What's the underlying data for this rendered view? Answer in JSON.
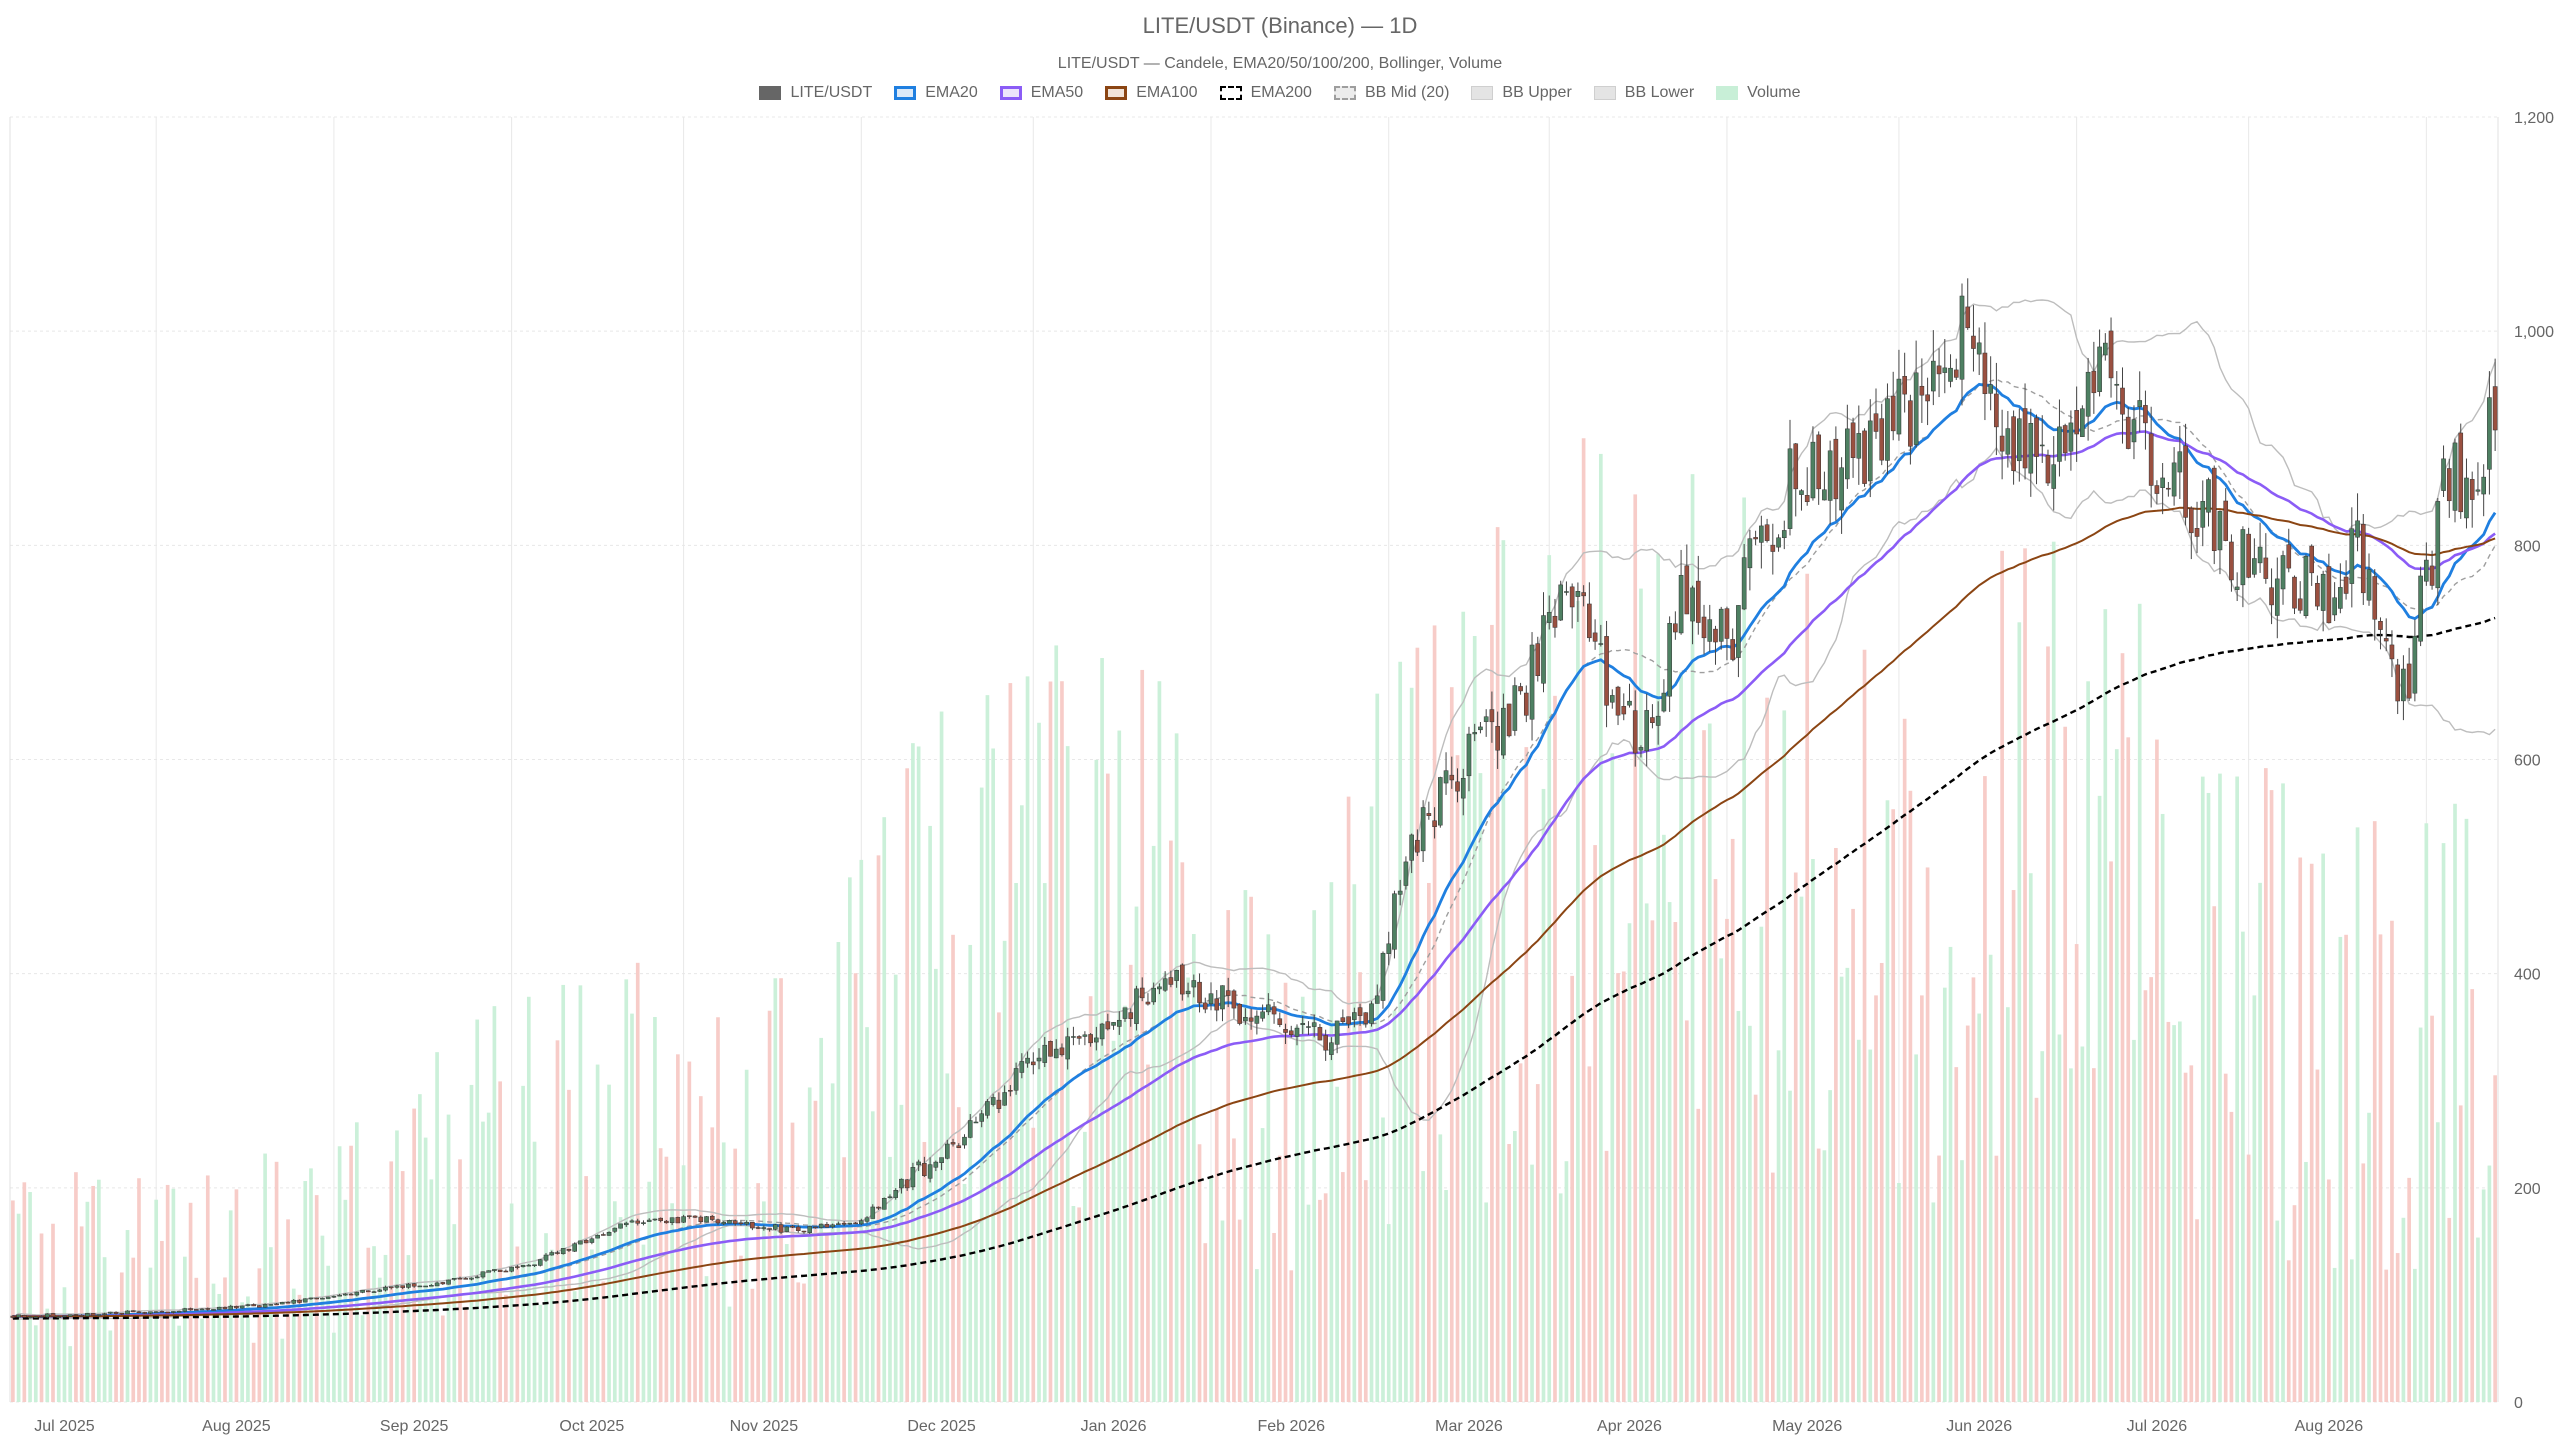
{
  "chart_data": {
    "type": "candlestick",
    "title": "LITE/USDT (Binance) — 1D",
    "subtitle": "LITE/USDT — Candele, EMA20/50/100/200, Bollinger, Volume",
    "legend": [
      {
        "name": "LITE/USDT",
        "style": "candle",
        "fill": "#666666",
        "stroke": "#666666"
      },
      {
        "name": "EMA20",
        "style": "line",
        "fill": "#dbe9f8",
        "stroke": "#1f7fe0"
      },
      {
        "name": "EMA50",
        "style": "line",
        "fill": "#ece4fb",
        "stroke": "#8b5cf6"
      },
      {
        "name": "EMA100",
        "style": "line",
        "fill": "#f1e3d8",
        "stroke": "#8b4513"
      },
      {
        "name": "EMA200",
        "style": "dashed",
        "fill": "#ffffff",
        "stroke": "#000000"
      },
      {
        "name": "BB Mid (20)",
        "style": "dashed",
        "fill": "#ececec",
        "stroke": "#9e9e9e"
      },
      {
        "name": "BB Upper",
        "style": "band",
        "fill": "#e4e4e4",
        "stroke": "#cfcfcf"
      },
      {
        "name": "BB Lower",
        "style": "band",
        "fill": "#e4e4e4",
        "stroke": "#cfcfcf"
      },
      {
        "name": "Volume",
        "style": "bar",
        "fill": "#c8efd7",
        "stroke": "#c8efd7"
      }
    ],
    "x_labels": [
      "Jul 2025",
      "Aug 2025",
      "Sep 2025",
      "Oct 2025",
      "Nov 2025",
      "Dec 2025",
      "Jan 2026",
      "Feb 2026",
      "Mar 2026",
      "Apr 2026",
      "May 2026",
      "Jun 2026",
      "Jul 2026",
      "Aug 2026"
    ],
    "y_axis": {
      "position": "right",
      "min": 0,
      "max": 1200,
      "ticks": [
        0,
        200,
        400,
        600,
        800,
        1000,
        1200
      ],
      "tick_labels": [
        "0",
        "200",
        "400",
        "600",
        "800",
        "1,000",
        "1,200"
      ]
    },
    "grid": true,
    "colors": {
      "up": "#4e8062",
      "down": "#9a5040",
      "volume_up": "#c8efd7",
      "volume_down": "#f7c9c5",
      "bb_band": "#bdbdbd",
      "grid": "#e8e8e8"
    },
    "date_range": [
      "2025-06-06",
      "2026-08-13"
    ],
    "close_anchors": [
      [
        "2025-06-06",
        80
      ],
      [
        "2025-06-20",
        82
      ],
      [
        "2025-07-05",
        86
      ],
      [
        "2025-07-20",
        90
      ],
      [
        "2025-08-05",
        102
      ],
      [
        "2025-08-20",
        112
      ],
      [
        "2025-09-05",
        130
      ],
      [
        "2025-09-20",
        165
      ],
      [
        "2025-10-05",
        172
      ],
      [
        "2025-10-20",
        160
      ],
      [
        "2025-11-01",
        168
      ],
      [
        "2025-11-08",
        205
      ],
      [
        "2025-11-20",
        252
      ],
      [
        "2025-12-01",
        318
      ],
      [
        "2025-12-15",
        355
      ],
      [
        "2025-12-25",
        395
      ],
      [
        "2026-01-05",
        372
      ],
      [
        "2026-01-20",
        340
      ],
      [
        "2026-01-28",
        355
      ],
      [
        "2026-02-05",
        520
      ],
      [
        "2026-02-15",
        600
      ],
      [
        "2026-02-25",
        670
      ],
      [
        "2026-03-05",
        760
      ],
      [
        "2026-03-12",
        650
      ],
      [
        "2026-03-18",
        620
      ],
      [
        "2026-03-25",
        760
      ],
      [
        "2026-04-01",
        710
      ],
      [
        "2026-04-08",
        820
      ],
      [
        "2026-04-15",
        880
      ],
      [
        "2026-04-25",
        870
      ],
      [
        "2026-05-05",
        950
      ],
      [
        "2026-05-12",
        1010
      ],
      [
        "2026-05-20",
        880
      ],
      [
        "2026-06-01",
        900
      ],
      [
        "2026-06-05",
        960
      ],
      [
        "2026-06-15",
        870
      ],
      [
        "2026-06-25",
        820
      ],
      [
        "2026-07-05",
        760
      ],
      [
        "2026-07-15",
        760
      ],
      [
        "2026-07-20",
        790
      ],
      [
        "2026-07-28",
        660
      ],
      [
        "2026-08-05",
        880
      ],
      [
        "2026-08-10",
        820
      ],
      [
        "2026-08-13",
        940
      ]
    ],
    "volume_anchors": [
      [
        "2025-06-06",
        70
      ],
      [
        "2025-08-01",
        90
      ],
      [
        "2025-09-15",
        150
      ],
      [
        "2025-10-15",
        130
      ],
      [
        "2025-11-15",
        230
      ],
      [
        "2025-12-15",
        250
      ],
      [
        "2026-01-15",
        180
      ],
      [
        "2026-02-10",
        280
      ],
      [
        "2026-03-15",
        330
      ],
      [
        "2026-04-15",
        270
      ],
      [
        "2026-05-15",
        300
      ],
      [
        "2026-06-15",
        260
      ],
      [
        "2026-07-15",
        190
      ],
      [
        "2026-08-13",
        200
      ]
    ],
    "ema_periods": [
      20,
      50,
      100,
      200
    ],
    "ema_seeds": [
      80,
      80,
      80,
      78
    ],
    "bollinger": {
      "period": 20,
      "stddev": 2
    }
  }
}
